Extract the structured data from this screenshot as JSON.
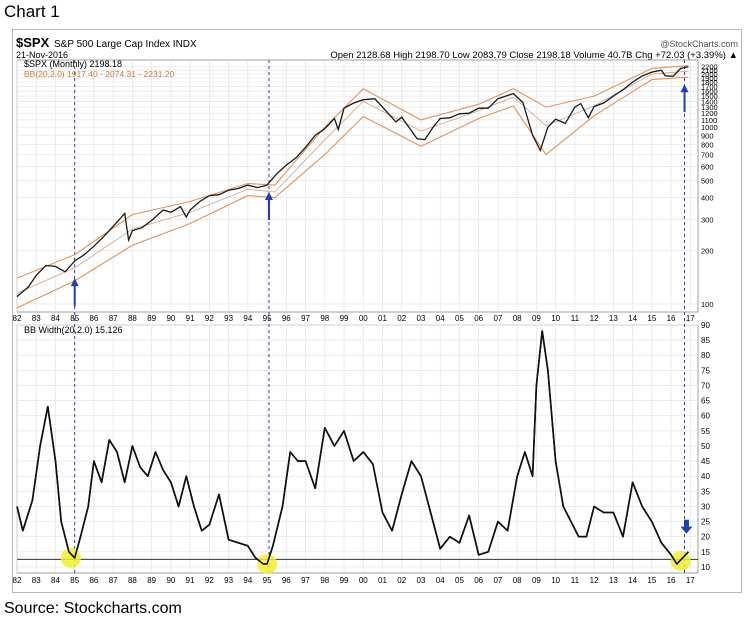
{
  "page": {
    "heading": "Chart 1",
    "source": "Source: Stockcharts.com"
  },
  "header": {
    "symbol": "$SPX",
    "description": "S&P 500 Large Cap Index INDX",
    "date": "21-Nov-2016",
    "watermark": "@StockCharts.com",
    "quote_line": "Open 2128.68  High 2198.70  Low 2083.79  Close 2198.18  Volume 40.7B  Chg +72.03 (+3.39%) ▲",
    "legend_price": "$SPX (Monthly) 2198.18",
    "legend_bb": "BB(20,2.0) 1917.40 - 2074.31 - 2231.20",
    "legend_width": "BB Width(20,2.0) 15.126"
  },
  "chart_data": [
    {
      "type": "line",
      "title": "$SPX (Monthly) 2198.18",
      "scale": "log",
      "ylim": [
        90,
        2400
      ],
      "xlim": [
        1982.0,
        2017.4
      ],
      "yticks": [
        100,
        200,
        300,
        400,
        500,
        600,
        700,
        800,
        900,
        1000,
        1100,
        1200,
        1300,
        1400,
        1500,
        1600,
        1700,
        1800,
        1900,
        2000,
        2100,
        2200
      ],
      "xtick_labels": [
        "82",
        "83",
        "84",
        "85",
        "86",
        "87",
        "88",
        "89",
        "90",
        "91",
        "92",
        "93",
        "94",
        "95",
        "96",
        "97",
        "98",
        "99",
        "00",
        "01",
        "02",
        "03",
        "04",
        "05",
        "06",
        "07",
        "08",
        "09",
        "10",
        "11",
        "12",
        "13",
        "14",
        "15",
        "16",
        "17"
      ],
      "grid": true,
      "series": [
        {
          "name": "$SPX (Monthly)",
          "x": [
            1982.0,
            1982.6,
            1983.0,
            1983.5,
            1984.0,
            1984.5,
            1985.0,
            1985.5,
            1986.0,
            1986.5,
            1987.0,
            1987.6,
            1987.8,
            1988.0,
            1988.5,
            1989.0,
            1989.6,
            1990.0,
            1990.5,
            1990.8,
            1991.0,
            1991.5,
            1992.0,
            1992.5,
            1993.0,
            1993.5,
            1994.0,
            1994.5,
            1995.0,
            1995.5,
            1996.0,
            1996.5,
            1997.0,
            1997.5,
            1998.0,
            1998.5,
            1998.7,
            1999.0,
            1999.5,
            2000.0,
            2000.6,
            2001.0,
            2001.7,
            2002.0,
            2002.8,
            2003.2,
            2003.6,
            2004.0,
            2004.5,
            2005.0,
            2005.5,
            2006.0,
            2006.5,
            2007.0,
            2007.8,
            2008.3,
            2008.8,
            2009.2,
            2009.6,
            2010.0,
            2010.5,
            2011.0,
            2011.3,
            2011.7,
            2012.0,
            2012.5,
            2013.0,
            2013.5,
            2014.0,
            2014.5,
            2015.0,
            2015.5,
            2015.7,
            2016.1,
            2016.5,
            2016.9
          ],
          "values": [
            110,
            125,
            145,
            165,
            163,
            152,
            175,
            190,
            212,
            240,
            275,
            325,
            230,
            260,
            270,
            297,
            340,
            330,
            355,
            310,
            340,
            380,
            410,
            415,
            440,
            450,
            470,
            455,
            470,
            545,
            610,
            670,
            770,
            900,
            980,
            1120,
            970,
            1280,
            1370,
            1430,
            1450,
            1300,
            1070,
            1140,
            860,
            850,
            990,
            1120,
            1130,
            1190,
            1200,
            1280,
            1280,
            1450,
            1550,
            1380,
            900,
            740,
            1000,
            1110,
            1050,
            1300,
            1360,
            1130,
            1310,
            1370,
            1500,
            1630,
            1800,
            1950,
            2050,
            2100,
            1950,
            1940,
            2150,
            2198
          ]
        },
        {
          "name": "BB(20,2.0) upper",
          "x": [
            1982.0,
            1985.0,
            1988.0,
            1991.0,
            1994.0,
            1995.4,
            1998.0,
            2000.0,
            2003.0,
            2006.0,
            2007.8,
            2009.5,
            2012.0,
            2015.0,
            2016.9
          ],
          "values": [
            140,
            190,
            320,
            380,
            480,
            470,
            1000,
            1650,
            1100,
            1350,
            1650,
            1300,
            1500,
            2150,
            2231
          ]
        },
        {
          "name": "BB(20,2.0) middle",
          "x": [
            1982.0,
            1985.0,
            1988.0,
            1991.0,
            1994.0,
            1995.4,
            1998.0,
            2000.0,
            2003.0,
            2006.0,
            2007.8,
            2009.5,
            2012.0,
            2015.0,
            2016.9
          ],
          "values": [
            115,
            160,
            265,
            330,
            445,
            430,
            850,
            1400,
            950,
            1240,
            1480,
            1020,
            1320,
            2000,
            2074
          ]
        },
        {
          "name": "BB(20,2.0) lower",
          "x": [
            1982.0,
            1985.0,
            1988.0,
            1991.0,
            1994.0,
            1995.4,
            1998.0,
            2000.0,
            2003.0,
            2006.0,
            2007.8,
            2009.5,
            2012.0,
            2015.0,
            2016.9
          ],
          "values": [
            95,
            135,
            215,
            285,
            410,
            400,
            700,
            1150,
            780,
            1120,
            1320,
            700,
            1160,
            1860,
            1917
          ]
        }
      ]
    },
    {
      "type": "line",
      "title": "BB Width(20,2.0) 15.126",
      "ylim": [
        8,
        90
      ],
      "xlim": [
        1982.0,
        2017.4
      ],
      "yticks": [
        10,
        15,
        20,
        25,
        30,
        35,
        40,
        45,
        50,
        55,
        60,
        65,
        70,
        75,
        80,
        85,
        90
      ],
      "xtick_labels": [
        "82",
        "83",
        "84",
        "85",
        "86",
        "87",
        "88",
        "89",
        "90",
        "91",
        "92",
        "93",
        "94",
        "95",
        "96",
        "97",
        "98",
        "99",
        "00",
        "01",
        "02",
        "03",
        "04",
        "05",
        "06",
        "07",
        "08",
        "09",
        "10",
        "11",
        "12",
        "13",
        "14",
        "15",
        "16",
        "17"
      ],
      "grid": true,
      "series": [
        {
          "name": "BB Width(20,2.0)",
          "x": [
            1982.0,
            1982.3,
            1982.8,
            1983.2,
            1983.6,
            1984.0,
            1984.3,
            1984.7,
            1985.0,
            1985.3,
            1985.7,
            1986.0,
            1986.4,
            1986.8,
            1987.2,
            1987.6,
            1988.0,
            1988.4,
            1988.8,
            1989.2,
            1989.6,
            1990.0,
            1990.4,
            1990.8,
            1991.2,
            1991.6,
            1992.0,
            1992.5,
            1993.0,
            1993.5,
            1994.0,
            1994.4,
            1994.8,
            1995.0,
            1995.3,
            1995.8,
            1996.2,
            1996.6,
            1997.0,
            1997.5,
            1998.0,
            1998.5,
            1999.0,
            1999.5,
            2000.0,
            2000.5,
            2001.0,
            2001.5,
            2002.0,
            2002.5,
            2003.0,
            2003.5,
            2004.0,
            2004.5,
            2005.0,
            2005.5,
            2006.0,
            2006.5,
            2007.0,
            2007.5,
            2008.0,
            2008.4,
            2008.8,
            2009.0,
            2009.3,
            2009.6,
            2010.0,
            2010.4,
            2010.8,
            2011.2,
            2011.6,
            2012.0,
            2012.5,
            2013.0,
            2013.5,
            2014.0,
            2014.5,
            2015.0,
            2015.5,
            2016.0,
            2016.3,
            2016.6,
            2016.9
          ],
          "values": [
            30,
            22,
            32,
            50,
            63,
            45,
            25,
            15,
            13,
            20,
            30,
            45,
            38,
            52,
            48,
            38,
            50,
            43,
            40,
            48,
            42,
            38,
            30,
            40,
            30,
            22,
            24,
            34,
            19,
            18,
            17,
            13,
            11,
            11,
            17,
            30,
            48,
            45,
            45,
            36,
            56,
            50,
            55,
            45,
            48,
            44,
            28,
            22,
            34,
            45,
            40,
            28,
            16,
            20,
            18,
            27,
            14,
            15,
            25,
            22,
            40,
            48,
            40,
            70,
            88,
            75,
            45,
            30,
            25,
            20,
            20,
            30,
            28,
            28,
            20,
            38,
            30,
            25,
            18,
            14,
            11,
            13,
            15
          ]
        }
      ]
    }
  ],
  "annotations": {
    "vertical_markers": [
      1985.0,
      1995.1,
      2016.7
    ],
    "price_arrows": [
      {
        "x": 1985.0,
        "y": 140
      },
      {
        "x": 1995.1,
        "y": 430
      },
      {
        "x": 2016.7,
        "y": 1750
      }
    ],
    "width_arrow": {
      "x": 2016.8,
      "y": 21
    },
    "highlight_circles": [
      {
        "x": 1984.8,
        "y": 13
      },
      {
        "x": 1995.0,
        "y": 11
      },
      {
        "x": 2016.5,
        "y": 12
      }
    ],
    "threshold_line": 12.5,
    "colors": {
      "price": "#1a1a1a",
      "bands": "#e0935a",
      "band_mid": "#c9a58a",
      "arrow": "#1f3fb0",
      "highlight": "#f2ef2f",
      "width_line": "#111111"
    }
  }
}
